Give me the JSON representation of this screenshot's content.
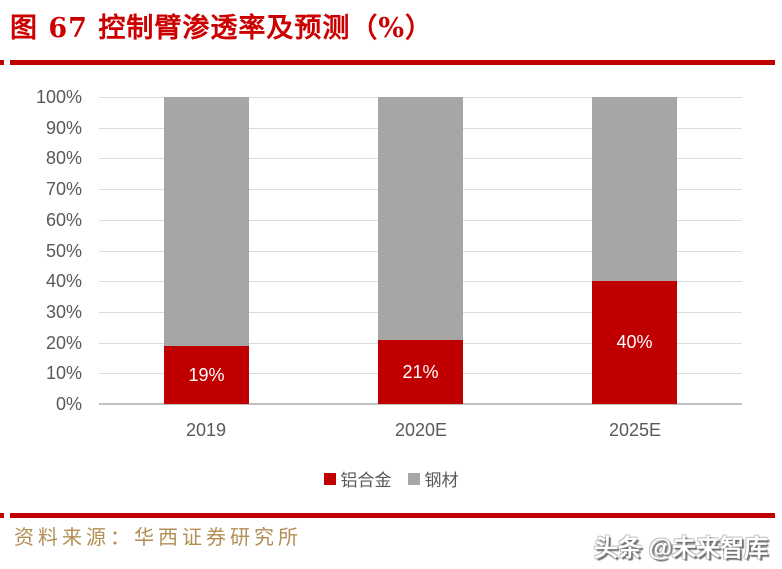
{
  "figure": {
    "title": "图 67 控制臂渗透率及预测（%）",
    "source_label": "资料来源：华西证券研究所",
    "watermark": "头条 @未来智库"
  },
  "colors": {
    "title_red": "#CC0000",
    "rule_red": "#C00000",
    "bar_red": "#C00000",
    "bar_gray": "#A6A6A6",
    "axis_text": "#595959",
    "gridline": "#DCDCDC",
    "axis_line": "#BFBFBF",
    "source_text": "#B28E55",
    "data_label": "#FFFFFF"
  },
  "chart_data": {
    "type": "bar",
    "stacked": true,
    "title": "图 67 控制臂渗透率及预测（%）",
    "categories": [
      "2019",
      "2020E",
      "2025E"
    ],
    "series": [
      {
        "name": "铝合金",
        "color": "#C00000",
        "values": [
          19,
          21,
          40
        ]
      },
      {
        "name": "钢材",
        "color": "#A6A6A6",
        "values": [
          81,
          79,
          60
        ]
      }
    ],
    "data_labels": [
      "19%",
      "21%",
      "40%"
    ],
    "y_ticks": [
      "100%",
      "90%",
      "80%",
      "70%",
      "60%",
      "50%",
      "40%",
      "30%",
      "20%",
      "10%",
      "0%"
    ],
    "ylim": [
      0,
      100
    ],
    "grid": true,
    "legend_position": "bottom",
    "xlabel": "",
    "ylabel": ""
  }
}
